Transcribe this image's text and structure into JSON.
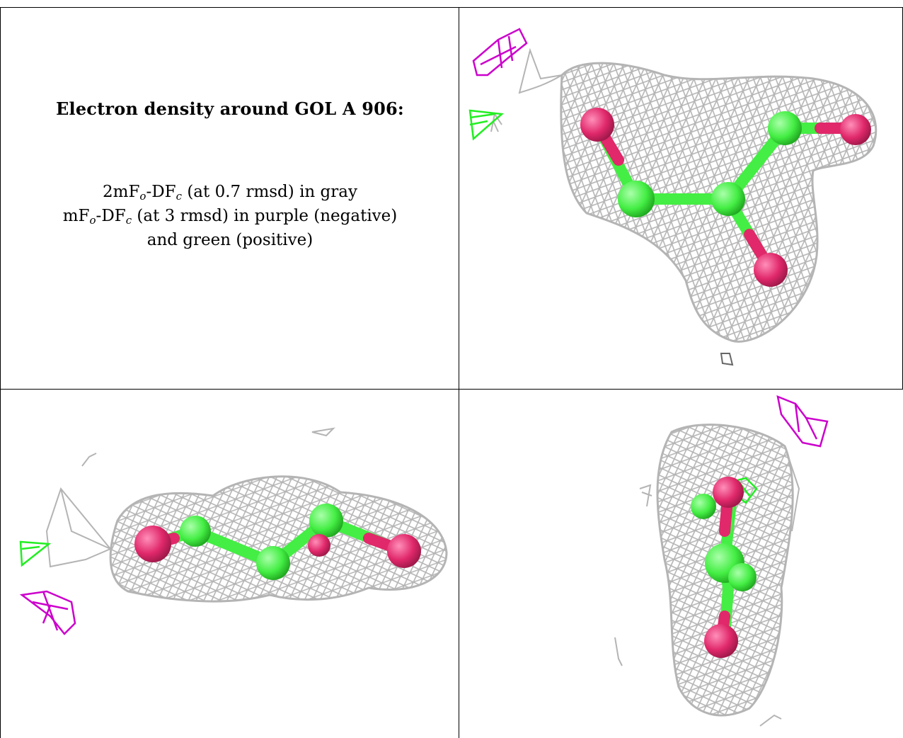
{
  "caption": {
    "title": "Electron density around GOL A 906:",
    "legend_lines": [
      {
        "pre": "2mF",
        "sub1": "o",
        "mid": "-DF",
        "sub2": "c",
        "post": " (at 0.7 rmsd) in gray"
      },
      {
        "pre": "mF",
        "sub1": "o",
        "mid": "-DF",
        "sub2": "c",
        "post": " (at 3 rmsd) in purple (negative)"
      },
      {
        "text": "and green (positive)"
      }
    ]
  },
  "colors": {
    "mesh_2fofc": "#b4b4b4",
    "mesh_negative": "#cc00cc",
    "mesh_positive": "#22ee22",
    "carbon": "#44ee44",
    "oxygen": "#e0286a"
  },
  "panels": [
    {
      "view": "top-right"
    },
    {
      "view": "bottom-left"
    },
    {
      "view": "bottom-right"
    }
  ]
}
